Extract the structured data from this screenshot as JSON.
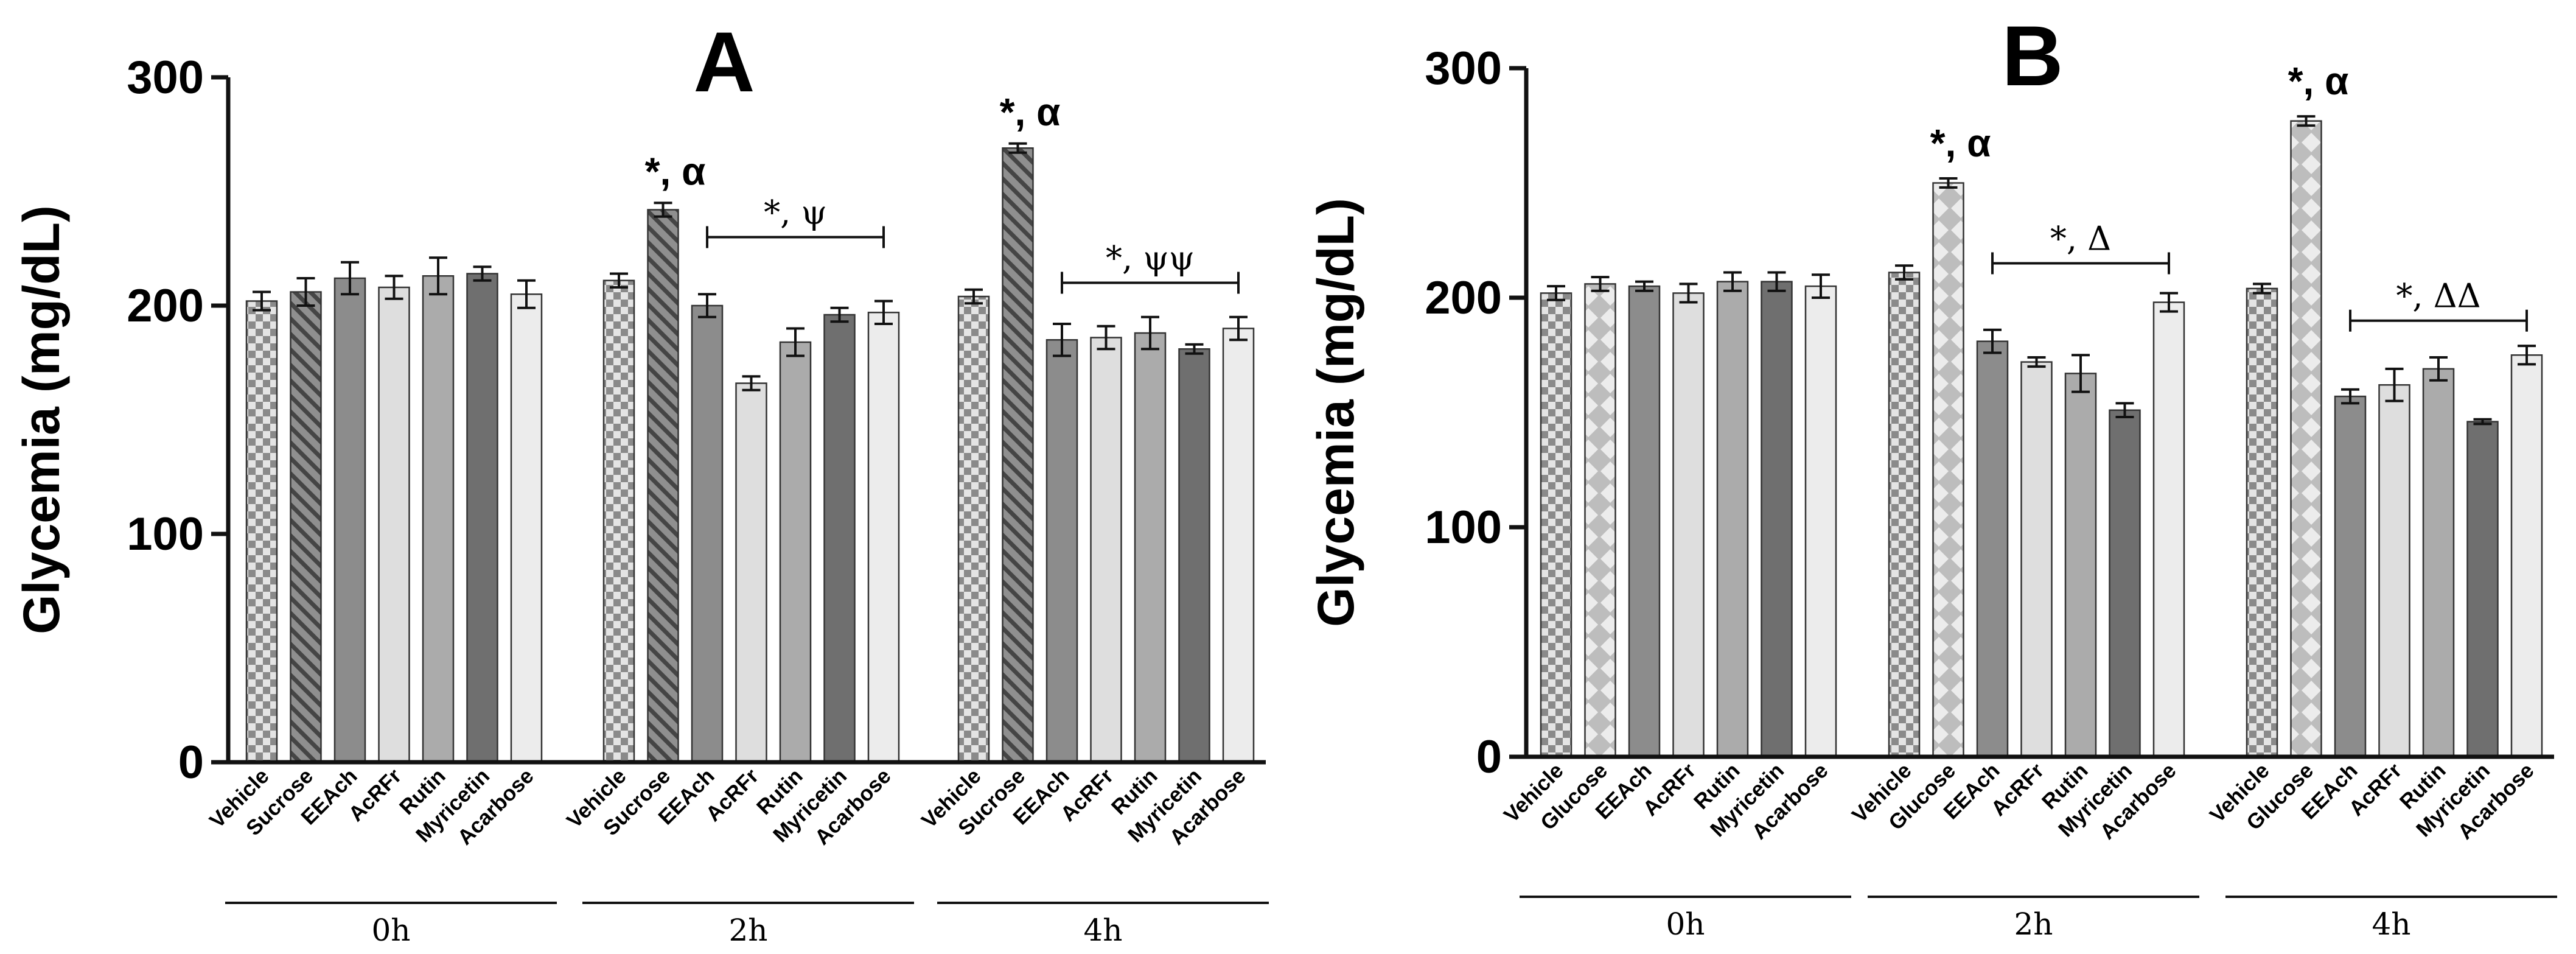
{
  "chart_data": [
    {
      "type": "bar",
      "panel_label": "A",
      "ylabel": "Glycemia (mg/dL)",
      "ylim": [
        0,
        300
      ],
      "yticks": [
        0,
        100,
        200,
        300
      ],
      "groups": [
        {
          "label": "0h",
          "bars": [
            {
              "name": "Vehicle",
              "value": 202,
              "error": 4,
              "pattern": "checker"
            },
            {
              "name": "Sucrose",
              "value": 206,
              "error": 6,
              "pattern": "hatch"
            },
            {
              "name": "EEAch",
              "value": 212,
              "error": 7,
              "pattern": "solid-mid"
            },
            {
              "name": "AcRFr",
              "value": 208,
              "error": 5,
              "pattern": "solid-light"
            },
            {
              "name": "Rutin",
              "value": 213,
              "error": 8,
              "pattern": "solid-midlight"
            },
            {
              "name": "Myricetin",
              "value": 214,
              "error": 3,
              "pattern": "solid-dark"
            },
            {
              "name": "Acarbose",
              "value": 205,
              "error": 6,
              "pattern": "solid-pale"
            }
          ]
        },
        {
          "label": "2h",
          "bars": [
            {
              "name": "Vehicle",
              "value": 211,
              "error": 3,
              "pattern": "checker"
            },
            {
              "name": "Sucrose",
              "value": 242,
              "error": 3,
              "pattern": "hatch",
              "annotation": "*, α"
            },
            {
              "name": "EEAch",
              "value": 200,
              "error": 5,
              "pattern": "solid-mid"
            },
            {
              "name": "AcRFr",
              "value": 166,
              "error": 3,
              "pattern": "solid-light"
            },
            {
              "name": "Rutin",
              "value": 184,
              "error": 6,
              "pattern": "solid-midlight"
            },
            {
              "name": "Myricetin",
              "value": 196,
              "error": 3,
              "pattern": "solid-dark"
            },
            {
              "name": "Acarbose",
              "value": 197,
              "error": 5,
              "pattern": "solid-pale"
            }
          ],
          "bracket": {
            "text": "*, ψ",
            "from": "EEAch",
            "to": "Acarbose",
            "y": 230
          }
        },
        {
          "label": "4h",
          "bars": [
            {
              "name": "Vehicle",
              "value": 204,
              "error": 3,
              "pattern": "checker"
            },
            {
              "name": "Sucrose",
              "value": 269,
              "error": 2,
              "pattern": "hatch",
              "annotation": "*, α"
            },
            {
              "name": "EEAch",
              "value": 185,
              "error": 7,
              "pattern": "solid-mid"
            },
            {
              "name": "AcRFr",
              "value": 186,
              "error": 5,
              "pattern": "solid-light"
            },
            {
              "name": "Rutin",
              "value": 188,
              "error": 7,
              "pattern": "solid-midlight"
            },
            {
              "name": "Myricetin",
              "value": 181,
              "error": 2,
              "pattern": "solid-dark"
            },
            {
              "name": "Acarbose",
              "value": 190,
              "error": 5,
              "pattern": "solid-pale"
            }
          ],
          "bracket": {
            "text": "*, ψψ",
            "from": "EEAch",
            "to": "Acarbose",
            "y": 210
          }
        }
      ]
    },
    {
      "type": "bar",
      "panel_label": "B",
      "ylabel": "Glycemia (mg/dL)",
      "ylim": [
        0,
        300
      ],
      "yticks": [
        0,
        100,
        200,
        300
      ],
      "groups": [
        {
          "label": "0h",
          "bars": [
            {
              "name": "Vehicle",
              "value": 202,
              "error": 3,
              "pattern": "checker"
            },
            {
              "name": "Glucose",
              "value": 206,
              "error": 3,
              "pattern": "diamond"
            },
            {
              "name": "EEAch",
              "value": 205,
              "error": 2,
              "pattern": "solid-mid"
            },
            {
              "name": "AcRFr",
              "value": 202,
              "error": 4,
              "pattern": "solid-light"
            },
            {
              "name": "Rutin",
              "value": 207,
              "error": 4,
              "pattern": "solid-midlight"
            },
            {
              "name": "Myricetin",
              "value": 207,
              "error": 4,
              "pattern": "solid-dark"
            },
            {
              "name": "Acarbose",
              "value": 205,
              "error": 5,
              "pattern": "solid-pale"
            }
          ]
        },
        {
          "label": "2h",
          "bars": [
            {
              "name": "Vehicle",
              "value": 211,
              "error": 3,
              "pattern": "checker"
            },
            {
              "name": "Glucose",
              "value": 250,
              "error": 2,
              "pattern": "diamond",
              "annotation": "*, α"
            },
            {
              "name": "EEAch",
              "value": 181,
              "error": 5,
              "pattern": "solid-mid"
            },
            {
              "name": "AcRFr",
              "value": 172,
              "error": 2,
              "pattern": "solid-light"
            },
            {
              "name": "Rutin",
              "value": 167,
              "error": 8,
              "pattern": "solid-midlight"
            },
            {
              "name": "Myricetin",
              "value": 151,
              "error": 3,
              "pattern": "solid-dark"
            },
            {
              "name": "Acarbose",
              "value": 198,
              "error": 4,
              "pattern": "solid-pale"
            }
          ],
          "bracket": {
            "text": "*, Δ",
            "from": "EEAch",
            "to": "Acarbose",
            "y": 215
          }
        },
        {
          "label": "4h",
          "bars": [
            {
              "name": "Vehicle",
              "value": 204,
              "error": 2,
              "pattern": "checker"
            },
            {
              "name": "Glucose",
              "value": 277,
              "error": 2,
              "pattern": "diamond",
              "annotation": "*, α"
            },
            {
              "name": "EEAch",
              "value": 157,
              "error": 3,
              "pattern": "solid-mid"
            },
            {
              "name": "AcRFr",
              "value": 162,
              "error": 7,
              "pattern": "solid-light"
            },
            {
              "name": "Rutin",
              "value": 169,
              "error": 5,
              "pattern": "solid-midlight"
            },
            {
              "name": "Myricetin",
              "value": 146,
              "error": 1,
              "pattern": "solid-dark"
            },
            {
              "name": "Acarbose",
              "value": 175,
              "error": 4,
              "pattern": "solid-pale"
            }
          ],
          "bracket": {
            "text": "*, ΔΔ",
            "from": "EEAch",
            "to": "Acarbose",
            "y": 190
          }
        }
      ]
    }
  ],
  "colors": {
    "solid-mid": "#8c8c8c",
    "solid-light": "#dedede",
    "solid-midlight": "#ababab",
    "solid-dark": "#6f6f6f",
    "solid-pale": "#ececec",
    "axis": "#111111"
  }
}
